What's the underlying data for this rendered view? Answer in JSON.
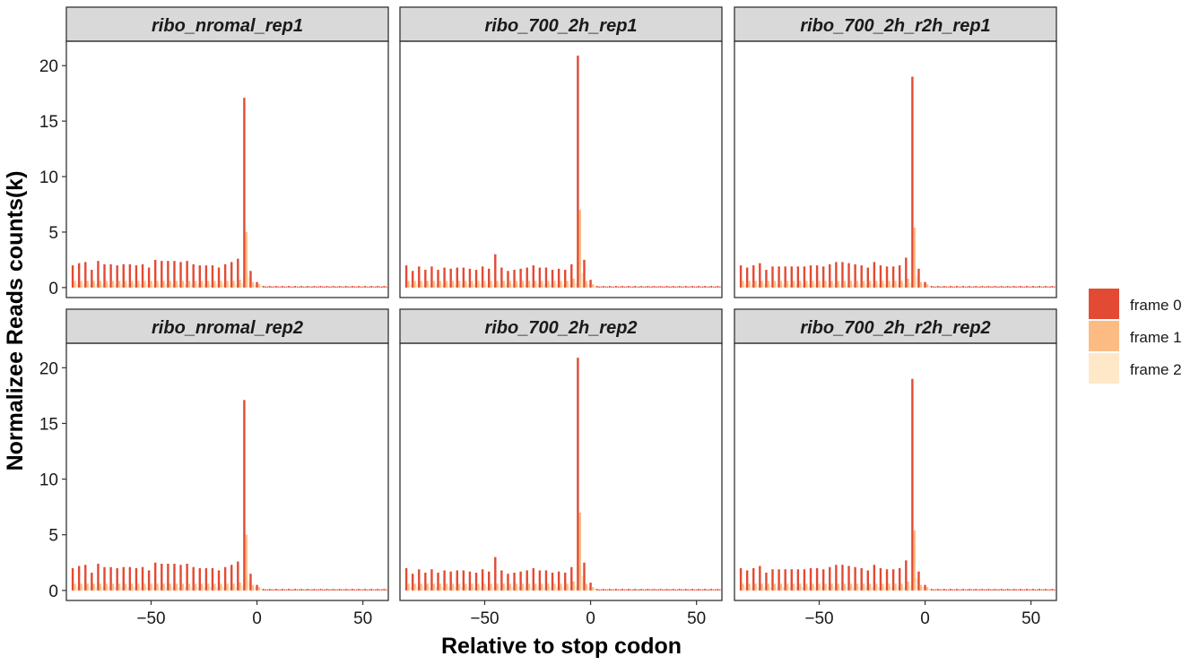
{
  "chart_data": {
    "type": "bar",
    "facet_layout": {
      "rows": 2,
      "cols": 3
    },
    "xlabel": "Relative to stop codon",
    "ylabel": "Normalizee Reads counts(k)",
    "xlim": [
      -90,
      62
    ],
    "ylim": [
      -0.9,
      22.2
    ],
    "x_ticks": [
      -50,
      0,
      50
    ],
    "x_tick_labels": [
      "−50",
      "0",
      "50"
    ],
    "y_ticks": [
      0,
      5,
      10,
      15,
      20
    ],
    "y_tick_labels": [
      "0",
      "5",
      "10",
      "15",
      "20"
    ],
    "grid": false,
    "legend_placement": "right",
    "legend": [
      {
        "label": "frame 0",
        "color": "#E34A33"
      },
      {
        "label": "frame 1",
        "color": "#FDBB84"
      },
      {
        "label": "frame 2",
        "color": "#FEE8C8"
      }
    ],
    "panels": [
      {
        "title": "ribo_nromal_rep1",
        "frame0": [
          2.0,
          2.2,
          2.3,
          1.6,
          2.4,
          2.1,
          2.1,
          2.0,
          2.1,
          2.1,
          2.0,
          2.1,
          1.8,
          2.5,
          2.4,
          2.4,
          2.4,
          2.3,
          2.4,
          2.1,
          2.0,
          2.0,
          2.0,
          1.8,
          2.1,
          2.3,
          2.6,
          17.1,
          1.5,
          0.5
        ],
        "frame1": [
          0.6,
          0.6,
          0.6,
          0.6,
          0.6,
          0.6,
          0.6,
          0.6,
          0.6,
          0.6,
          0.6,
          0.6,
          0.6,
          0.6,
          0.6,
          0.6,
          0.6,
          0.6,
          0.6,
          0.6,
          0.6,
          0.6,
          0.6,
          0.6,
          0.6,
          0.6,
          0.7,
          5.0,
          0.5,
          0.3
        ],
        "frame2": [
          0.3,
          0.3,
          0.3,
          0.3,
          0.3,
          0.3,
          0.3,
          0.3,
          0.3,
          0.3,
          0.3,
          0.3,
          0.3,
          0.3,
          0.3,
          0.3,
          0.3,
          0.3,
          0.3,
          0.3,
          0.3,
          0.3,
          0.3,
          0.3,
          0.3,
          0.3,
          0.4,
          1.0,
          0.3,
          0.2
        ]
      },
      {
        "title": "ribo_700_2h_rep1",
        "frame0": [
          2.0,
          1.5,
          1.9,
          1.6,
          1.9,
          1.6,
          1.8,
          1.7,
          1.8,
          1.8,
          1.7,
          1.6,
          1.9,
          1.7,
          3.0,
          1.8,
          1.5,
          1.6,
          1.7,
          1.8,
          2.0,
          1.8,
          1.8,
          1.6,
          1.7,
          1.6,
          2.1,
          20.9,
          2.5,
          0.7
        ],
        "frame1": [
          0.6,
          0.6,
          0.6,
          0.6,
          0.6,
          0.6,
          0.6,
          0.6,
          0.6,
          0.6,
          0.6,
          0.6,
          0.6,
          0.6,
          0.6,
          0.6,
          0.6,
          0.6,
          0.6,
          0.6,
          0.6,
          0.6,
          0.6,
          0.6,
          0.6,
          0.6,
          0.8,
          7.0,
          0.6,
          0.3
        ],
        "frame2": [
          0.3,
          0.3,
          0.3,
          0.3,
          0.3,
          0.3,
          0.3,
          0.3,
          0.3,
          0.3,
          0.3,
          0.3,
          0.3,
          0.3,
          0.3,
          0.3,
          0.3,
          0.3,
          0.3,
          0.3,
          0.3,
          0.3,
          0.3,
          0.3,
          0.3,
          0.3,
          0.4,
          1.3,
          0.3,
          0.2
        ]
      },
      {
        "title": "ribo_700_2h_r2h_rep1",
        "frame0": [
          2.0,
          1.8,
          2.0,
          2.2,
          1.6,
          1.9,
          1.9,
          1.9,
          1.9,
          1.9,
          1.9,
          2.0,
          2.0,
          1.9,
          2.1,
          2.3,
          2.3,
          2.2,
          2.1,
          2.0,
          1.8,
          2.3,
          2.0,
          1.9,
          1.9,
          2.0,
          2.7,
          19.0,
          1.7,
          0.5
        ],
        "frame1": [
          0.6,
          0.6,
          0.6,
          0.6,
          0.6,
          0.6,
          0.6,
          0.6,
          0.6,
          0.6,
          0.6,
          0.6,
          0.6,
          0.6,
          0.6,
          0.6,
          0.6,
          0.6,
          0.6,
          0.6,
          0.6,
          0.6,
          0.6,
          0.6,
          0.6,
          0.6,
          0.8,
          5.4,
          0.5,
          0.3
        ],
        "frame2": [
          0.3,
          0.3,
          0.3,
          0.3,
          0.3,
          0.3,
          0.3,
          0.3,
          0.3,
          0.3,
          0.3,
          0.3,
          0.3,
          0.3,
          0.3,
          0.3,
          0.3,
          0.3,
          0.3,
          0.3,
          0.3,
          0.3,
          0.3,
          0.3,
          0.3,
          0.3,
          0.4,
          1.1,
          0.3,
          0.2
        ]
      },
      {
        "title": "ribo_nromal_rep2",
        "frame0": [
          2.0,
          2.2,
          2.3,
          1.6,
          2.4,
          2.1,
          2.1,
          2.0,
          2.1,
          2.1,
          2.0,
          2.1,
          1.8,
          2.5,
          2.4,
          2.4,
          2.4,
          2.3,
          2.4,
          2.1,
          2.0,
          2.0,
          2.0,
          1.8,
          2.1,
          2.3,
          2.6,
          17.1,
          1.5,
          0.5
        ],
        "frame1": [
          0.6,
          0.6,
          0.6,
          0.6,
          0.6,
          0.6,
          0.6,
          0.6,
          0.6,
          0.6,
          0.6,
          0.6,
          0.6,
          0.6,
          0.6,
          0.6,
          0.6,
          0.6,
          0.6,
          0.6,
          0.6,
          0.6,
          0.6,
          0.6,
          0.6,
          0.6,
          0.7,
          5.0,
          0.5,
          0.3
        ],
        "frame2": [
          0.3,
          0.3,
          0.3,
          0.3,
          0.3,
          0.3,
          0.3,
          0.3,
          0.3,
          0.3,
          0.3,
          0.3,
          0.3,
          0.3,
          0.3,
          0.3,
          0.3,
          0.3,
          0.3,
          0.3,
          0.3,
          0.3,
          0.3,
          0.3,
          0.3,
          0.3,
          0.4,
          1.0,
          0.3,
          0.2
        ]
      },
      {
        "title": "ribo_700_2h_rep2",
        "frame0": [
          2.0,
          1.5,
          1.9,
          1.6,
          1.9,
          1.6,
          1.8,
          1.7,
          1.8,
          1.8,
          1.7,
          1.6,
          1.9,
          1.7,
          3.0,
          1.8,
          1.5,
          1.6,
          1.7,
          1.8,
          2.0,
          1.8,
          1.8,
          1.6,
          1.7,
          1.6,
          2.1,
          20.9,
          2.5,
          0.7
        ],
        "frame1": [
          0.6,
          0.6,
          0.6,
          0.6,
          0.6,
          0.6,
          0.6,
          0.6,
          0.6,
          0.6,
          0.6,
          0.6,
          0.6,
          0.6,
          0.6,
          0.6,
          0.6,
          0.6,
          0.6,
          0.6,
          0.6,
          0.6,
          0.6,
          0.6,
          0.6,
          0.6,
          0.8,
          7.0,
          0.6,
          0.3
        ],
        "frame2": [
          0.3,
          0.3,
          0.3,
          0.3,
          0.3,
          0.3,
          0.3,
          0.3,
          0.3,
          0.3,
          0.3,
          0.3,
          0.3,
          0.3,
          0.3,
          0.3,
          0.3,
          0.3,
          0.3,
          0.3,
          0.3,
          0.3,
          0.3,
          0.3,
          0.3,
          0.3,
          0.4,
          1.3,
          0.3,
          0.2
        ]
      },
      {
        "title": "ribo_700_2h_r2h_rep2",
        "frame0": [
          2.0,
          1.8,
          2.0,
          2.2,
          1.6,
          1.9,
          1.9,
          1.9,
          1.9,
          1.9,
          1.9,
          2.0,
          2.0,
          1.9,
          2.1,
          2.3,
          2.3,
          2.2,
          2.1,
          2.0,
          1.8,
          2.3,
          2.0,
          1.9,
          1.9,
          2.0,
          2.7,
          19.0,
          1.7,
          0.5
        ],
        "frame1": [
          0.6,
          0.6,
          0.6,
          0.6,
          0.6,
          0.6,
          0.6,
          0.6,
          0.6,
          0.6,
          0.6,
          0.6,
          0.6,
          0.6,
          0.6,
          0.6,
          0.6,
          0.6,
          0.6,
          0.6,
          0.6,
          0.6,
          0.6,
          0.6,
          0.6,
          0.6,
          0.8,
          5.4,
          0.5,
          0.3
        ],
        "frame2": [
          0.3,
          0.3,
          0.3,
          0.3,
          0.3,
          0.3,
          0.3,
          0.3,
          0.3,
          0.3,
          0.3,
          0.3,
          0.3,
          0.3,
          0.3,
          0.3,
          0.3,
          0.3,
          0.3,
          0.3,
          0.3,
          0.3,
          0.3,
          0.3,
          0.3,
          0.3,
          0.4,
          1.1,
          0.3,
          0.2
        ]
      }
    ]
  }
}
